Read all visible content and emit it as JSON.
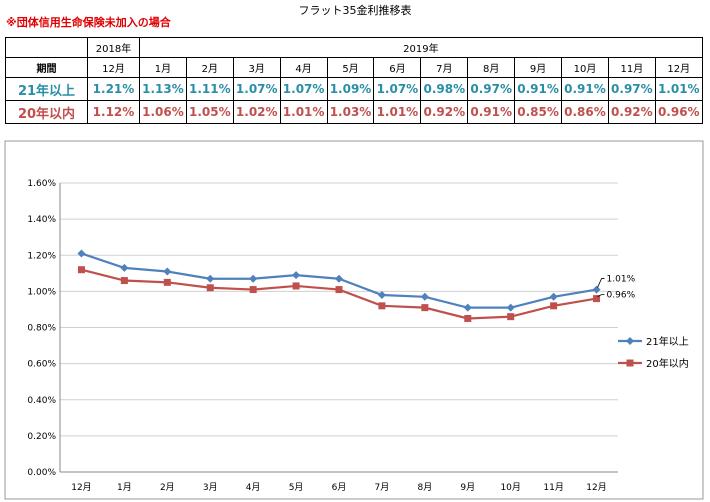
{
  "title": "フラット35金利推移表",
  "note": "※団体信用生命保険未加入の場合",
  "table": {
    "year_2018": "2018年",
    "year_2019": "2019年",
    "period_label": "期間",
    "months": [
      "12月",
      "1月",
      "2月",
      "3月",
      "4月",
      "5月",
      "6月",
      "7月",
      "8月",
      "9月",
      "10月",
      "11月",
      "12月"
    ],
    "rows": [
      {
        "label": "21年以上",
        "values": [
          "1.21%",
          "1.13%",
          "1.11%",
          "1.07%",
          "1.07%",
          "1.09%",
          "1.07%",
          "0.98%",
          "0.97%",
          "0.91%",
          "0.91%",
          "0.97%",
          "1.01%"
        ]
      },
      {
        "label": "20年以内",
        "values": [
          "1.12%",
          "1.06%",
          "1.05%",
          "1.02%",
          "1.01%",
          "1.03%",
          "1.01%",
          "0.92%",
          "0.91%",
          "0.85%",
          "0.86%",
          "0.92%",
          "0.96%"
        ]
      }
    ]
  },
  "chart_data": {
    "type": "line",
    "title": "",
    "xlabel": "",
    "ylabel": "",
    "categories": [
      "12月",
      "1月",
      "2月",
      "3月",
      "4月",
      "5月",
      "6月",
      "7月",
      "8月",
      "9月",
      "10月",
      "11月",
      "12月"
    ],
    "ylim": [
      0,
      1.6
    ],
    "yticks": [
      "0.00%",
      "0.20%",
      "0.40%",
      "0.60%",
      "0.80%",
      "1.00%",
      "1.20%",
      "1.40%",
      "1.60%"
    ],
    "grid": true,
    "legend_position": "right",
    "series": [
      {
        "name": "21年以上",
        "color": "#4f81bd",
        "marker": "diamond",
        "values": [
          1.21,
          1.13,
          1.11,
          1.07,
          1.07,
          1.09,
          1.07,
          0.98,
          0.97,
          0.91,
          0.91,
          0.97,
          1.01
        ],
        "end_label": "1.01%"
      },
      {
        "name": "20年以内",
        "color": "#c0504d",
        "marker": "square",
        "values": [
          1.12,
          1.06,
          1.05,
          1.02,
          1.01,
          1.03,
          1.01,
          0.92,
          0.91,
          0.85,
          0.86,
          0.92,
          0.96
        ],
        "end_label": "0.96%"
      }
    ]
  }
}
